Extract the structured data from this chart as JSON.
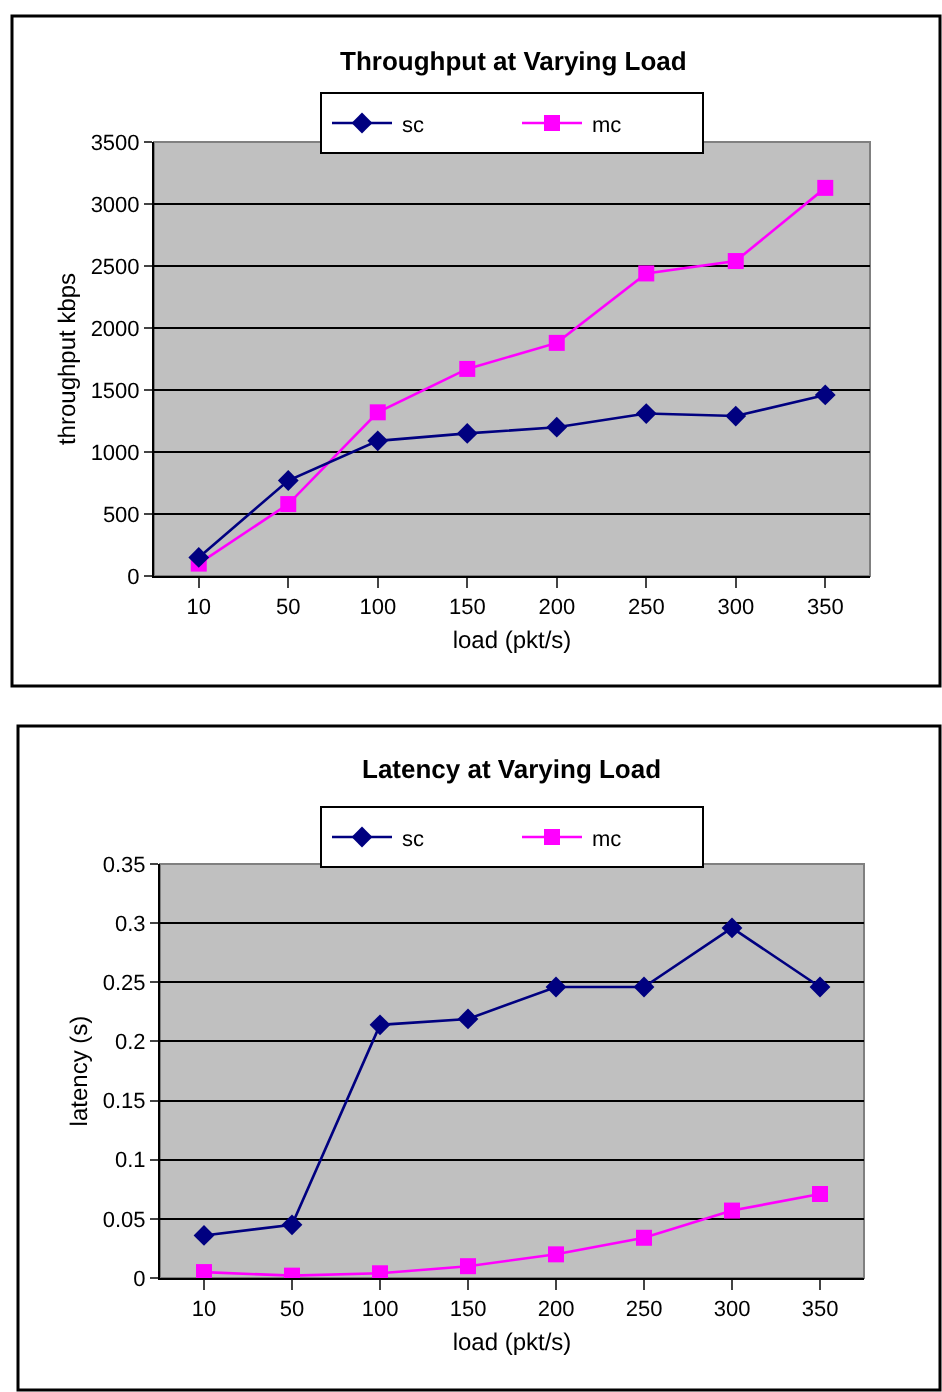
{
  "chart_data": [
    {
      "type": "line",
      "title": "Throughput at Varying Load",
      "xlabel": "load (pkt/s)",
      "ylabel": "throughput kbps",
      "categories": [
        "10",
        "50",
        "100",
        "150",
        "200",
        "250",
        "300",
        "350"
      ],
      "series": [
        {
          "name": "sc",
          "color": "#000080",
          "marker": "diamond",
          "values": [
            150,
            770,
            1090,
            1150,
            1200,
            1310,
            1290,
            1460
          ]
        },
        {
          "name": "mc",
          "color": "#ff00ff",
          "marker": "square",
          "values": [
            100,
            580,
            1320,
            1670,
            1880,
            2440,
            2540,
            3130
          ]
        }
      ],
      "ylim": [
        0,
        3500
      ],
      "yticks": [
        0,
        500,
        1000,
        1500,
        2000,
        2500,
        3000,
        3500
      ],
      "grid": "y",
      "legend": "top"
    },
    {
      "type": "line",
      "title": "Latency at Varying Load",
      "xlabel": "load (pkt/s)",
      "ylabel": "latency (s)",
      "categories": [
        "10",
        "50",
        "100",
        "150",
        "200",
        "250",
        "300",
        "350"
      ],
      "series": [
        {
          "name": "sc",
          "color": "#000080",
          "marker": "diamond",
          "values": [
            0.036,
            0.045,
            0.214,
            0.219,
            0.246,
            0.246,
            0.296,
            0.246
          ]
        },
        {
          "name": "mc",
          "color": "#ff00ff",
          "marker": "square",
          "values": [
            0.005,
            0.002,
            0.004,
            0.01,
            0.02,
            0.034,
            0.057,
            0.071
          ]
        }
      ],
      "ylim": [
        0,
        0.35
      ],
      "yticks": [
        0,
        0.05,
        0.1,
        0.15,
        0.2,
        0.25,
        0.3,
        0.35
      ],
      "grid": "y",
      "legend": "top"
    }
  ]
}
